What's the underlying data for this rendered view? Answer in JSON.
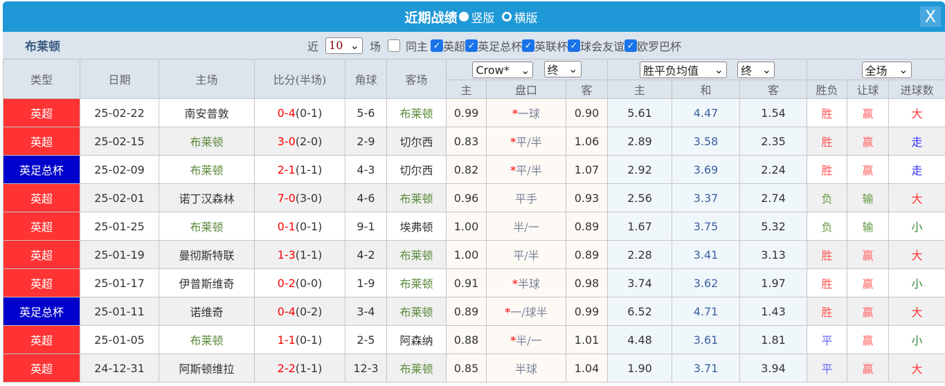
{
  "title": "近期战绩",
  "view_options": [
    {
      "label": "竖版",
      "selected": false
    },
    {
      "label": "横版",
      "selected": true
    }
  ],
  "close_label": "X",
  "team": "布莱顿",
  "filter": {
    "prefix": "近",
    "count": "10",
    "suffix": "场",
    "same_home": {
      "label": "同主",
      "checked": false
    },
    "leagues": [
      {
        "label": "英超",
        "checked": true
      },
      {
        "label": "英足总杯",
        "checked": true
      },
      {
        "label": "英联杯",
        "checked": true
      },
      {
        "label": "球会友谊",
        "checked": true
      },
      {
        "label": "欧罗巴杯",
        "checked": true
      }
    ]
  },
  "headers": {
    "type": "类型",
    "date": "日期",
    "home": "主场",
    "score": "比分(半场)",
    "corner": "角球",
    "away": "客场",
    "ah_company": "Crow*",
    "ah_stage": "终",
    "eu_type": "胜平负均值",
    "eu_stage": "终",
    "period": "全场",
    "sub": [
      "主",
      "盘口",
      "客",
      "主",
      "和",
      "客",
      "胜负",
      "让球",
      "进球数"
    ]
  },
  "colors": {
    "league_epl": "#ff3333",
    "league_fa": "#0000cc",
    "title_bar": "#1e98d6",
    "brighton": "#5a8a3a"
  },
  "rows": [
    {
      "league": "英超",
      "date": "25-02-22",
      "home": "南安普敦",
      "ft": "0-4",
      "ht": "(0-1)",
      "corner": "5-6",
      "away": "布莱顿",
      "ah_h": "0.99",
      "ah_star": "*",
      "ah_line": "一球",
      "ah_a": "0.90",
      "eu_h": "5.61",
      "eu_d": "4.47",
      "eu_a": "1.54",
      "res": "胜",
      "ah_res": "赢",
      "ou": "大"
    },
    {
      "league": "英超",
      "date": "25-02-15",
      "home": "布莱顿",
      "ft": "3-0",
      "ht": "(2-0)",
      "corner": "2-9",
      "away": "切尔西",
      "ah_h": "0.83",
      "ah_star": "*",
      "ah_line": "平/半",
      "ah_a": "1.06",
      "eu_h": "2.89",
      "eu_d": "3.58",
      "eu_a": "2.35",
      "res": "胜",
      "ah_res": "赢",
      "ou": "走"
    },
    {
      "league": "英足总杯",
      "date": "25-02-09",
      "home": "布莱顿",
      "ft": "2-1",
      "ht": "(1-1)",
      "corner": "4-3",
      "away": "切尔西",
      "ah_h": "0.82",
      "ah_star": "*",
      "ah_line": "平/半",
      "ah_a": "1.07",
      "eu_h": "2.92",
      "eu_d": "3.69",
      "eu_a": "2.24",
      "res": "胜",
      "ah_res": "赢",
      "ou": "走"
    },
    {
      "league": "英超",
      "date": "25-02-01",
      "home": "诺丁汉森林",
      "ft": "7-0",
      "ht": "(3-0)",
      "corner": "4-6",
      "away": "布莱顿",
      "ah_h": "0.96",
      "ah_star": "",
      "ah_line": "平手",
      "ah_a": "0.93",
      "eu_h": "2.56",
      "eu_d": "3.37",
      "eu_a": "2.74",
      "res": "负",
      "ah_res": "输",
      "ou": "大"
    },
    {
      "league": "英超",
      "date": "25-01-25",
      "home": "布莱顿",
      "ft": "0-1",
      "ht": "(0-1)",
      "corner": "9-1",
      "away": "埃弗顿",
      "ah_h": "1.00",
      "ah_star": "",
      "ah_line": "半/一",
      "ah_a": "0.89",
      "eu_h": "1.67",
      "eu_d": "3.75",
      "eu_a": "5.32",
      "res": "负",
      "ah_res": "输",
      "ou": "小"
    },
    {
      "league": "英超",
      "date": "25-01-19",
      "home": "曼彻斯特联",
      "ft": "1-3",
      "ht": "(1-1)",
      "corner": "4-2",
      "away": "布莱顿",
      "ah_h": "1.00",
      "ah_star": "",
      "ah_line": "平/半",
      "ah_a": "0.89",
      "eu_h": "2.28",
      "eu_d": "3.41",
      "eu_a": "3.13",
      "res": "胜",
      "ah_res": "赢",
      "ou": "大"
    },
    {
      "league": "英超",
      "date": "25-01-17",
      "home": "伊普斯维奇",
      "ft": "0-2",
      "ht": "(0-0)",
      "corner": "1-9",
      "away": "布莱顿",
      "ah_h": "0.91",
      "ah_star": "*",
      "ah_line": "半球",
      "ah_a": "0.98",
      "eu_h": "3.74",
      "eu_d": "3.62",
      "eu_a": "1.97",
      "res": "胜",
      "ah_res": "赢",
      "ou": "小"
    },
    {
      "league": "英足总杯",
      "date": "25-01-11",
      "home": "诺维奇",
      "ft": "0-4",
      "ht": "(0-2)",
      "corner": "3-4",
      "away": "布莱顿",
      "ah_h": "0.89",
      "ah_star": "*",
      "ah_line": "一/球半",
      "ah_a": "0.99",
      "eu_h": "6.52",
      "eu_d": "4.71",
      "eu_a": "1.43",
      "res": "胜",
      "ah_res": "赢",
      "ou": "大"
    },
    {
      "league": "英超",
      "date": "25-01-05",
      "home": "布莱顿",
      "ft": "1-1",
      "ht": "(0-1)",
      "corner": "2-5",
      "away": "阿森纳",
      "ah_h": "0.88",
      "ah_star": "*",
      "ah_line": "半/一",
      "ah_a": "1.01",
      "eu_h": "4.48",
      "eu_d": "3.61",
      "eu_a": "1.81",
      "res": "平",
      "ah_res": "赢",
      "ou": "小"
    },
    {
      "league": "英超",
      "date": "24-12-31",
      "home": "阿斯顿维拉",
      "ft": "2-2",
      "ht": "(1-1)",
      "corner": "12-3",
      "away": "布莱顿",
      "ah_h": "0.85",
      "ah_star": "",
      "ah_line": "半球",
      "ah_a": "1.04",
      "eu_h": "1.90",
      "eu_d": "3.71",
      "eu_a": "3.94",
      "res": "平",
      "ah_res": "赢",
      "ou": "大"
    }
  ]
}
